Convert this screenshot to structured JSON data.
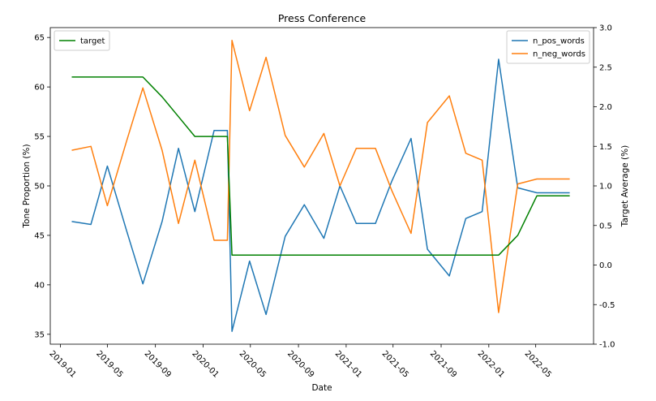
{
  "chart_data": {
    "type": "line",
    "title": "Press Conference",
    "xlabel": "Date",
    "ylabel": "Tone Proportion (%)",
    "ylabel_right": "Target Average (%)",
    "x_ticks": [
      "2019-01",
      "2019-05",
      "2019-09",
      "2020-01",
      "2020-05",
      "2020-09",
      "2021-01",
      "2021-05",
      "2021-09",
      "2022-01",
      "2022-05"
    ],
    "x_range": [
      "2018-12-06",
      "2022-09-26"
    ],
    "y_left": {
      "ylim": [
        34,
        66
      ],
      "ticks": [
        35,
        40,
        45,
        50,
        55,
        60,
        65
      ]
    },
    "y_right": {
      "ylim": [
        -1.0,
        3.0
      ],
      "ticks": [
        -1.0,
        -0.5,
        0.0,
        0.5,
        1.0,
        1.5,
        2.0,
        2.5,
        3.0
      ]
    },
    "grid": false,
    "colors": {
      "n_pos_words": "#1f77b4",
      "n_neg_words": "#ff7f0e",
      "target": "#008000"
    },
    "legend_left": {
      "placement": "top-left",
      "entries": [
        "target"
      ]
    },
    "legend_right": {
      "placement": "top-right",
      "entries": [
        "n_pos_words",
        "n_neg_words"
      ]
    },
    "x": [
      "2019-01-30",
      "2019-03-20",
      "2019-05-01",
      "2019-06-19",
      "2019-07-31",
      "2019-09-18",
      "2019-10-30",
      "2019-12-11",
      "2020-01-29",
      "2020-03-03",
      "2020-03-15",
      "2020-04-29",
      "2020-06-10",
      "2020-07-29",
      "2020-09-16",
      "2020-11-05",
      "2020-12-16",
      "2021-01-27",
      "2021-03-17",
      "2021-04-28",
      "2021-06-16",
      "2021-07-28",
      "2021-09-22",
      "2021-11-03",
      "2021-12-15",
      "2022-01-26",
      "2022-03-16",
      "2022-05-04",
      "2022-06-15",
      "2022-07-27"
    ],
    "series": [
      {
        "name": "n_pos_words",
        "axis": "left",
        "values": [
          46.4,
          46.1,
          52.0,
          45.5,
          40.1,
          46.4,
          53.8,
          47.4,
          55.6,
          55.6,
          35.3,
          42.4,
          37.0,
          44.9,
          48.1,
          44.7,
          50.0,
          46.2,
          46.2,
          50.5,
          54.8,
          43.6,
          40.9,
          46.7,
          47.4,
          62.8,
          49.8,
          49.3,
          49.3,
          49.3
        ]
      },
      {
        "name": "n_neg_words",
        "axis": "left",
        "values": [
          53.6,
          54.0,
          48.0,
          54.5,
          59.9,
          53.6,
          46.2,
          52.6,
          44.5,
          44.5,
          64.7,
          57.6,
          63.0,
          55.1,
          51.9,
          55.3,
          50.0,
          53.8,
          53.8,
          49.5,
          45.2,
          56.4,
          59.1,
          53.3,
          52.6,
          37.2,
          50.2,
          50.7,
          50.7,
          50.7
        ]
      },
      {
        "name": "target",
        "axis": "right",
        "values": [
          2.375,
          2.375,
          2.375,
          2.375,
          2.375,
          2.125,
          1.875,
          1.625,
          1.625,
          1.625,
          0.125,
          0.125,
          0.125,
          0.125,
          0.125,
          0.125,
          0.125,
          0.125,
          0.125,
          0.125,
          0.125,
          0.125,
          0.125,
          0.125,
          0.125,
          0.125,
          0.375,
          0.875,
          0.875,
          0.875
        ]
      }
    ]
  }
}
